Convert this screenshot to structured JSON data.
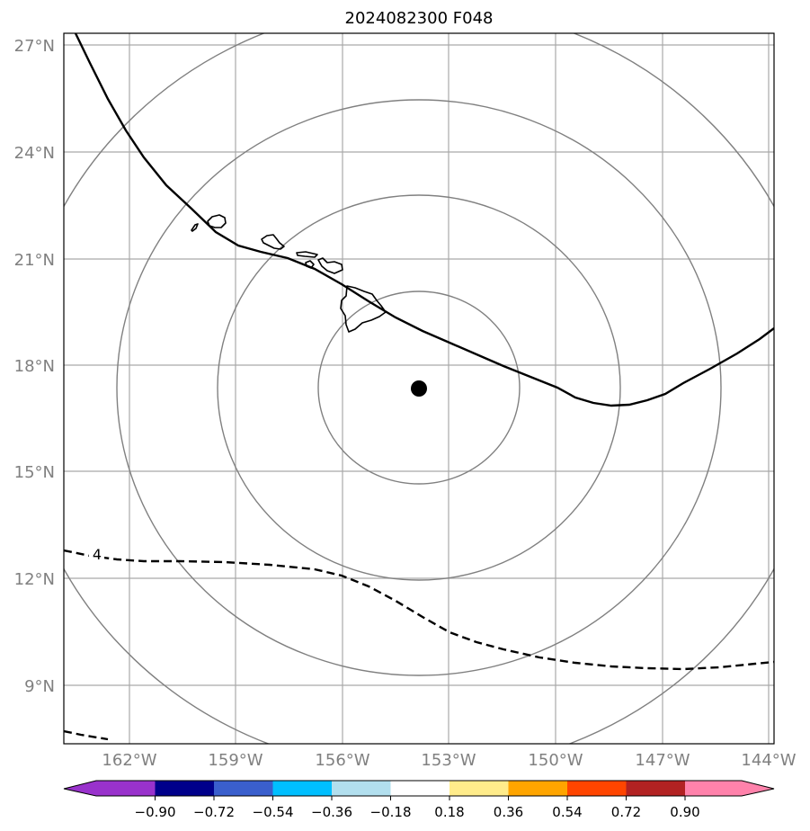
{
  "title": "2024082300 F048",
  "lat_labels": [
    "27°N",
    "24°N",
    "21°N",
    "18°N",
    "15°N",
    "12°N",
    "9°N"
  ],
  "lon_labels": [
    "162°W",
    "159°W",
    "156°W",
    "153°W",
    "150°W",
    "147°W",
    "144°W"
  ],
  "contour_label": "4",
  "colorbar": {
    "colors": [
      "#9932CC",
      "#00008B",
      "#3A5FCD",
      "#00BFFF",
      "#B2DFEE",
      "#FFFFFF",
      "#FFEC8B",
      "#FFA500",
      "#FF4500",
      "#B22222",
      "#FF82AB"
    ],
    "tick_labels": [
      "−0.90",
      "−0.72",
      "−0.54",
      "−0.36",
      "−0.18",
      "0.18",
      "0.36",
      "0.54",
      "0.72",
      "0.90"
    ]
  },
  "colors": {
    "grid": "#a9a9a9",
    "range_rings": "#808080",
    "axis_text": "#808080",
    "storm_marker": "#000000"
  },
  "storm_center_marker": "filled-circle"
}
